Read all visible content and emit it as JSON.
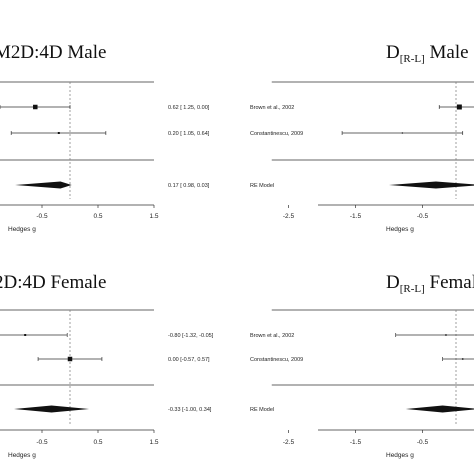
{
  "chart_data": [
    {
      "type": "forest",
      "title": "M2D:4D Male",
      "xlabel": "Hedges g",
      "ticks": [
        -0.5,
        0.5,
        1.5
      ],
      "tick_labels": [
        "-0.5",
        "0.5",
        "1.5"
      ],
      "xlim": [
        -1.4,
        1.5
      ],
      "reference_line": 0,
      "studies": [
        {
          "label": "",
          "estimate": -0.62,
          "lower": -1.25,
          "upper": 0.0,
          "text": "0.62 [ 1.25, 0.00]",
          "weight": 0.7
        },
        {
          "label": "",
          "estimate": -0.2,
          "lower": -1.05,
          "upper": 0.64,
          "text": "0.20 [ 1.05, 0.64]",
          "weight": 0.2
        }
      ],
      "summary": {
        "label": "",
        "estimate": -0.17,
        "lower": -0.98,
        "upper": 0.03,
        "text": "0.17 [ 0.98, 0.03]"
      }
    },
    {
      "type": "forest",
      "title": "D",
      "title_sub": "[R-L]",
      "title_suffix": " Male",
      "xlabel": "Hedges g",
      "ticks": [
        -2.5,
        -1.5,
        -0.5
      ],
      "tick_labels": [
        "-2.5",
        "-1.5",
        "-0.5"
      ],
      "xlim": [
        -2.75,
        0.45
      ],
      "reference_line": 0,
      "studies": [
        {
          "label": "Brown et al., 2002",
          "estimate": 0.05,
          "lower": -0.25,
          "upper": 0.35,
          "text": "",
          "weight": 0.8
        },
        {
          "label": "Constantinescu, 2009",
          "estimate": -0.8,
          "lower": -1.7,
          "upper": 0.1,
          "text": "",
          "weight": 0.05
        }
      ],
      "summary": {
        "label": "RE Model",
        "estimate": -0.3,
        "lower": -1.0,
        "upper": 0.4,
        "text": ""
      }
    },
    {
      "type": "forest",
      "title": "2D:4D Female",
      "xlabel": "Hedges g",
      "ticks": [
        -0.5,
        0.5,
        1.5
      ],
      "tick_labels": [
        "-0.5",
        "0.5",
        "1.5"
      ],
      "xlim": [
        -1.4,
        1.5
      ],
      "reference_line": 0,
      "studies": [
        {
          "label": "",
          "estimate": -0.8,
          "lower": -1.32,
          "upper": -0.05,
          "text": "-0.80 [-1.32, -0.05]",
          "weight": 0.2
        },
        {
          "label": "",
          "estimate": 0.0,
          "lower": -0.57,
          "upper": 0.57,
          "text": "0.00 [-0.57, 0.57]",
          "weight": 0.7
        }
      ],
      "summary": {
        "label": "",
        "estimate": -0.33,
        "lower": -1.0,
        "upper": 0.34,
        "text": "-0.33 [-1.00, 0.34]"
      }
    },
    {
      "type": "forest",
      "title": "D",
      "title_sub": "[R-L]",
      "title_suffix": " Female",
      "xlabel": "Hedges g",
      "ticks": [
        -2.5,
        -1.5,
        -0.5
      ],
      "tick_labels": [
        "-2.5",
        "-1.5",
        "-0.5"
      ],
      "xlim": [
        -2.75,
        0.45
      ],
      "reference_line": 0,
      "studies": [
        {
          "label": "Brown et al., 2002",
          "estimate": -0.15,
          "lower": -0.9,
          "upper": 0.6,
          "text": "",
          "weight": 0.1
        },
        {
          "label": "Constantinescu, 2009",
          "estimate": 0.1,
          "lower": -0.2,
          "upper": 0.4,
          "text": "",
          "weight": 0.1
        }
      ],
      "summary": {
        "label": "RE Model",
        "estimate": -0.2,
        "lower": -0.75,
        "upper": 0.35,
        "text": ""
      }
    }
  ]
}
